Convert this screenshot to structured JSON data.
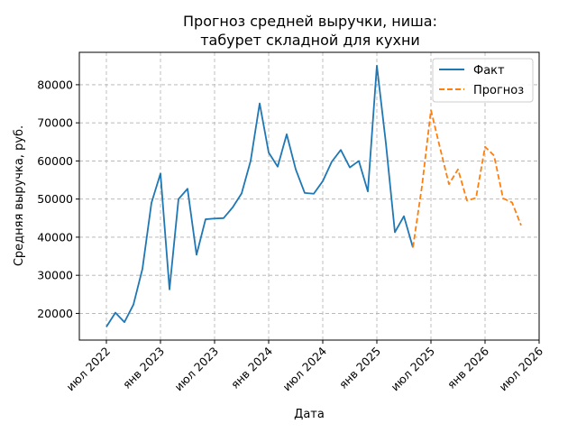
{
  "chart_data": {
    "type": "line",
    "title_lines": [
      "Прогноз средней выручки, ниша:",
      "табурет складной для кухни"
    ],
    "xlabel": "Дата",
    "ylabel": "Средняя выручка, руб.",
    "x_ticks": [
      {
        "date": "2022-07",
        "label": "июл 2022"
      },
      {
        "date": "2023-01",
        "label": "янв 2023"
      },
      {
        "date": "2023-07",
        "label": "июл 2023"
      },
      {
        "date": "2024-01",
        "label": "янв 2024"
      },
      {
        "date": "2024-07",
        "label": "июл 2024"
      },
      {
        "date": "2025-01",
        "label": "янв 2025"
      },
      {
        "date": "2025-07",
        "label": "июл 2025"
      },
      {
        "date": "2026-01",
        "label": "янв 2026"
      },
      {
        "date": "2026-07",
        "label": "июл 2026"
      }
    ],
    "xlim": [
      "2022-04",
      "2026-07"
    ],
    "y_ticks": [
      20000,
      30000,
      40000,
      50000,
      60000,
      70000,
      80000
    ],
    "ylim": [
      13000,
      88500
    ],
    "grid": true,
    "legend_position": "top-right",
    "series": [
      {
        "name": "Факт",
        "color": "#1f77b4",
        "dashed": false,
        "points": [
          [
            "2022-07",
            16500
          ],
          [
            "2022-08",
            20200
          ],
          [
            "2022-09",
            17700
          ],
          [
            "2022-10",
            22300
          ],
          [
            "2022-11",
            31700
          ],
          [
            "2022-12",
            49000
          ],
          [
            "2023-01",
            56700
          ],
          [
            "2023-02",
            26300
          ],
          [
            "2023-03",
            50000
          ],
          [
            "2023-04",
            52700
          ],
          [
            "2023-05",
            35400
          ],
          [
            "2023-06",
            44700
          ],
          [
            "2023-07",
            44900
          ],
          [
            "2023-08",
            45000
          ],
          [
            "2023-09",
            47800
          ],
          [
            "2023-10",
            51500
          ],
          [
            "2023-11",
            60000
          ],
          [
            "2023-12",
            75100
          ],
          [
            "2024-01",
            62200
          ],
          [
            "2024-02",
            58500
          ],
          [
            "2024-03",
            67000
          ],
          [
            "2024-04",
            57800
          ],
          [
            "2024-05",
            51600
          ],
          [
            "2024-06",
            51400
          ],
          [
            "2024-07",
            54700
          ],
          [
            "2024-08",
            59800
          ],
          [
            "2024-09",
            62900
          ],
          [
            "2024-10",
            58300
          ],
          [
            "2024-11",
            60000
          ],
          [
            "2024-12",
            52000
          ],
          [
            "2025-01",
            85000
          ],
          [
            "2025-02",
            64700
          ],
          [
            "2025-03",
            41300
          ],
          [
            "2025-04",
            45500
          ],
          [
            "2025-05",
            37300
          ]
        ]
      },
      {
        "name": "Прогноз",
        "color": "#ff7f0e",
        "dashed": true,
        "points": [
          [
            "2025-05",
            37300
          ],
          [
            "2025-06",
            53300
          ],
          [
            "2025-07",
            73300
          ],
          [
            "2025-08",
            63500
          ],
          [
            "2025-09",
            53900
          ],
          [
            "2025-10",
            57800
          ],
          [
            "2025-11",
            49600
          ],
          [
            "2025-12",
            50300
          ],
          [
            "2026-01",
            63700
          ],
          [
            "2026-02",
            61400
          ],
          [
            "2026-03",
            50200
          ],
          [
            "2026-04",
            49100
          ],
          [
            "2026-05",
            43100
          ]
        ]
      }
    ]
  }
}
